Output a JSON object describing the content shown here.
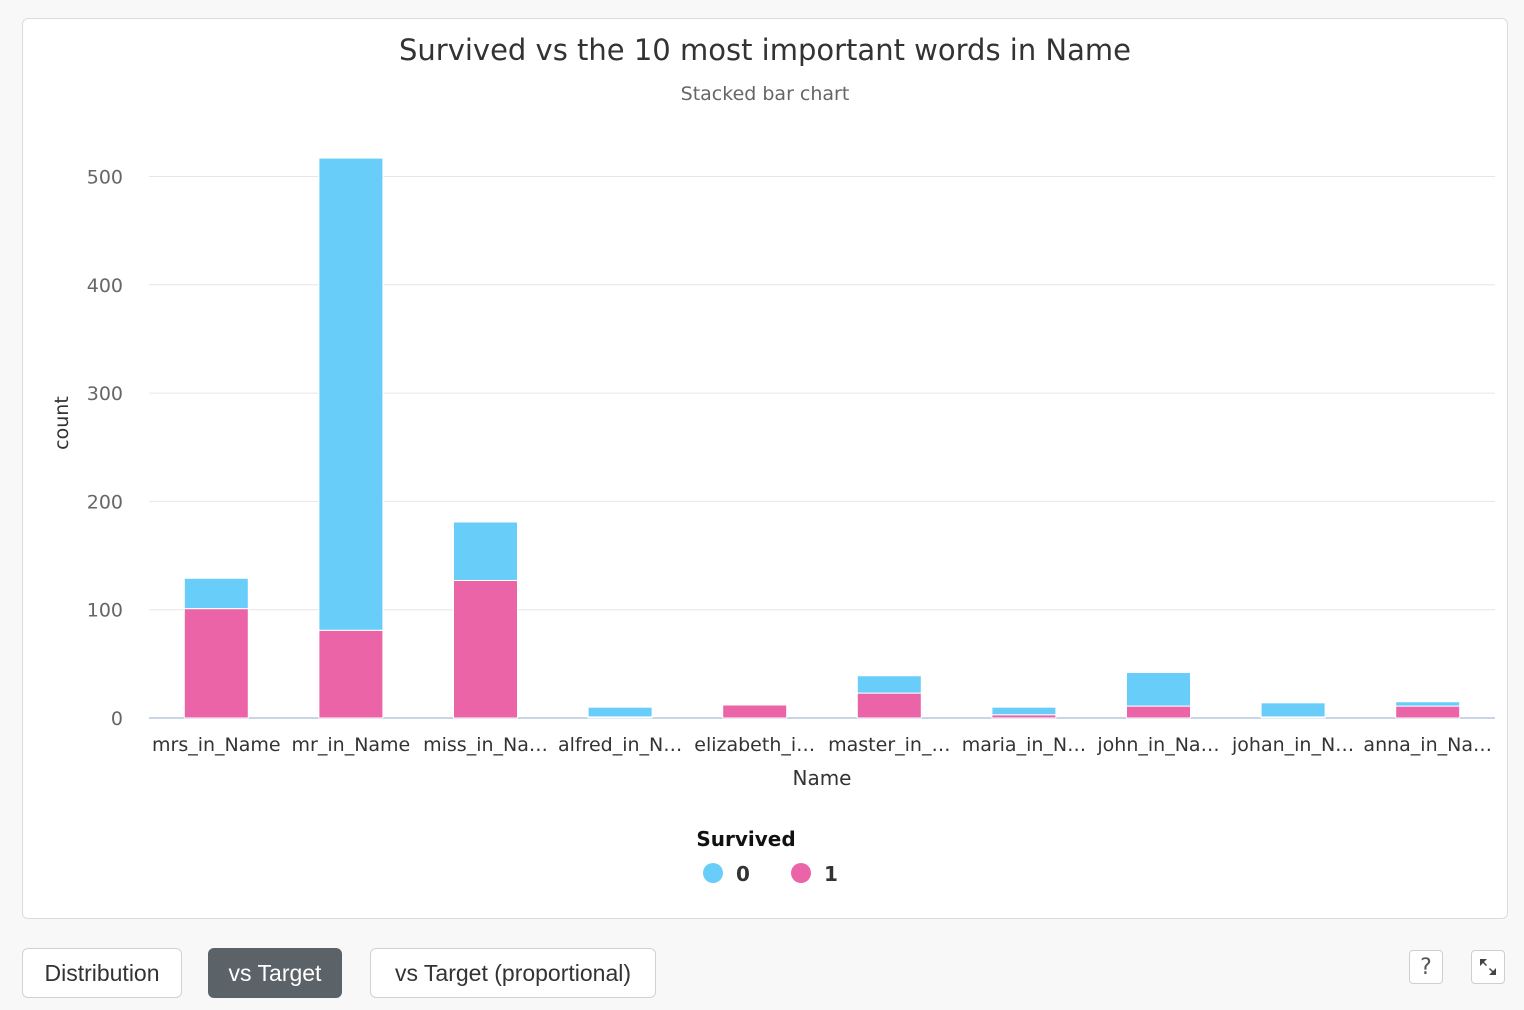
{
  "chart_data": {
    "type": "bar",
    "stacked": true,
    "title": "Survived vs the 10 most important words in Name",
    "subtitle": "Stacked bar chart",
    "xlabel": "Name",
    "ylabel": "count",
    "ylim": [
      0,
      520
    ],
    "yticks": [
      0,
      100,
      200,
      300,
      400,
      500
    ],
    "categories": [
      "mrs_in_Name",
      "mr_in_Name",
      "miss_in_Na…",
      "alfred_in_N…",
      "elizabeth_i…",
      "master_in_…",
      "maria_in_N…",
      "john_in_Na…",
      "johan_in_N…",
      "anna_in_Na…"
    ],
    "series": [
      {
        "name": "1",
        "color": "#ec64a8",
        "values": [
          101,
          81,
          127,
          1,
          12,
          23,
          3,
          11,
          1,
          11
        ]
      },
      {
        "name": "0",
        "color": "#69cdfa",
        "values": [
          28,
          436,
          54,
          9,
          0,
          16,
          7,
          31,
          13,
          4
        ]
      }
    ],
    "legend": {
      "title": "Survived",
      "placement": "bottom-center",
      "items": [
        {
          "label": "0",
          "color": "#69cdfa"
        },
        {
          "label": "1",
          "color": "#ec64a8"
        }
      ]
    },
    "grid": true
  },
  "controls": {
    "tabs": [
      {
        "label": "Distribution",
        "active": false
      },
      {
        "label": "vs Target",
        "active": true
      },
      {
        "label": "vs Target (proportional)",
        "active": false
      }
    ],
    "help_icon": "?",
    "help_icon_name": "help-icon",
    "expand_icon_name": "expand-icon"
  }
}
